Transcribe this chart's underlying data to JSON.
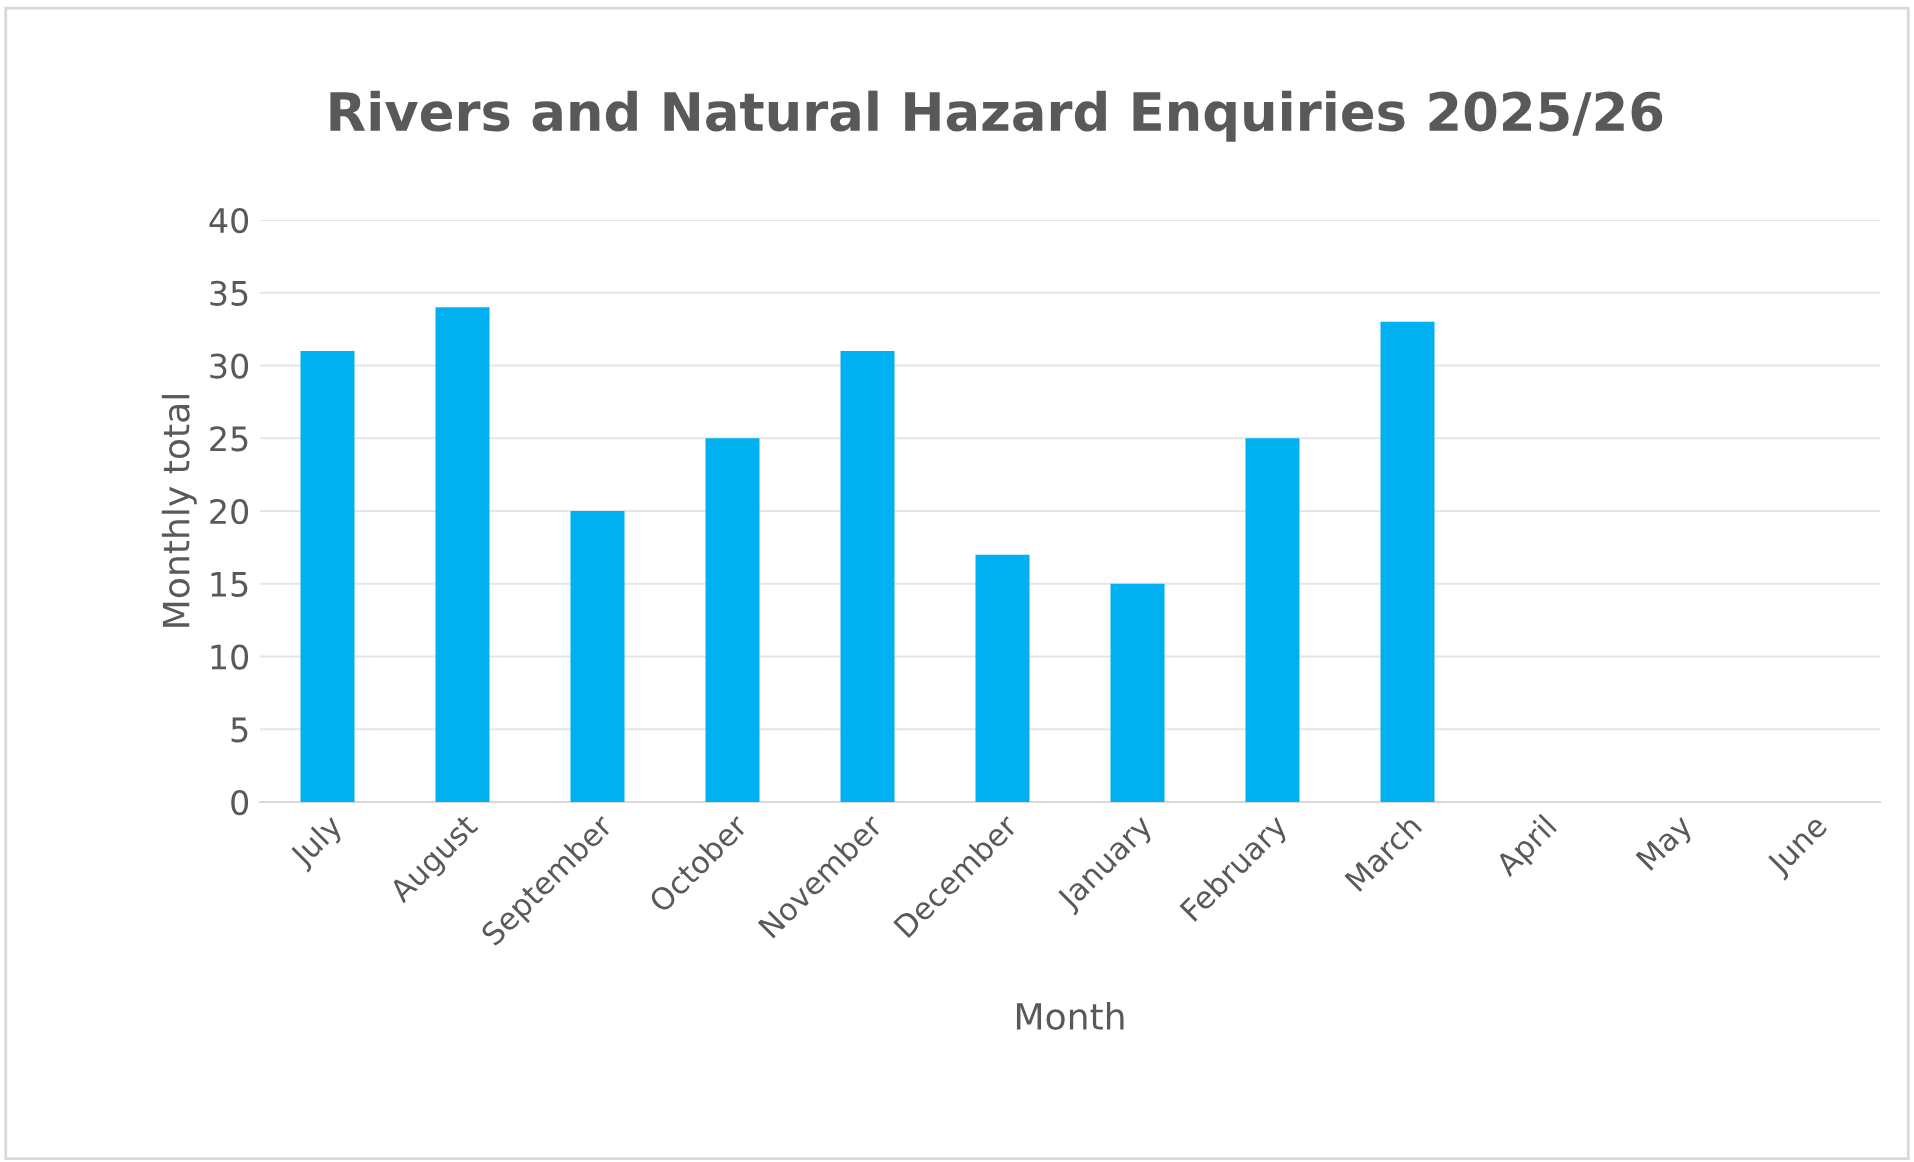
{
  "chart_data": {
    "type": "bar",
    "title": "Rivers and Natural Hazard Enquiries 2025/26",
    "xlabel": "Month",
    "ylabel": "Monthly total",
    "categories": [
      "July",
      "August",
      "September",
      "October",
      "November",
      "December",
      "January",
      "February",
      "March",
      "April",
      "May",
      "June"
    ],
    "values": [
      31,
      34,
      20,
      25,
      31,
      17,
      15,
      25,
      33,
      null,
      null,
      null
    ],
    "color": "#00b0f0",
    "ylim": [
      0,
      40
    ],
    "yticks": [
      0,
      5,
      10,
      15,
      20,
      25,
      30,
      35,
      40
    ],
    "grid": "y",
    "legend": false
  }
}
